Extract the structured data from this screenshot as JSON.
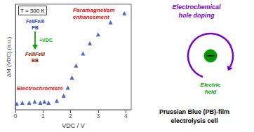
{
  "chart_data": {
    "type": "scatter",
    "x": [
      0.05,
      0.25,
      0.5,
      0.7,
      0.9,
      1.05,
      1.2,
      1.5,
      1.75,
      1.9,
      2.05,
      2.2,
      2.45,
      2.7,
      3.0,
      3.45,
      3.95
    ],
    "values": [
      0.06,
      0.07,
      0.07,
      0.08,
      0.07,
      0.08,
      0.07,
      0.09,
      0.14,
      0.22,
      0.32,
      0.44,
      0.56,
      0.66,
      0.75,
      0.87,
      0.96
    ],
    "color": "#1a3fbf",
    "marker": "triangle",
    "xlabel": "VDC / V",
    "ylabel": "ΔM (VDC) (a.u.)",
    "xlim": [
      0,
      4.2
    ],
    "ylim": [
      0,
      1.05
    ],
    "xticks": [
      0,
      1,
      2,
      3,
      4
    ],
    "yticks": [],
    "tick_labels": "x",
    "grid": false,
    "annotations": [
      {
        "text": "T = 300 K"
      },
      {
        "text": "Paramagnetism",
        "color": "red"
      },
      {
        "text": "enhancement",
        "color": "red"
      },
      {
        "text": "Electrochromism",
        "color": "red"
      },
      {
        "text": "FeIIFeIII",
        "color": "#1a3acc"
      },
      {
        "text": "PB",
        "color": "#1a3acc"
      },
      {
        "text": "+VDC",
        "color": "#00aa00"
      },
      {
        "text": "FeIIIFeIII",
        "color": "#8b2000"
      },
      {
        "text": "BB",
        "color": "#8b2000"
      },
      {
        "text": "Electrochemical",
        "color": "#7700cc"
      },
      {
        "text": "hole doping",
        "color": "#7700cc"
      },
      {
        "text": "Electric\nfield",
        "color": "#009900"
      },
      {
        "text": "Prussian Blue (PB)-film"
      },
      {
        "text": "electrolysis cell"
      }
    ]
  }
}
